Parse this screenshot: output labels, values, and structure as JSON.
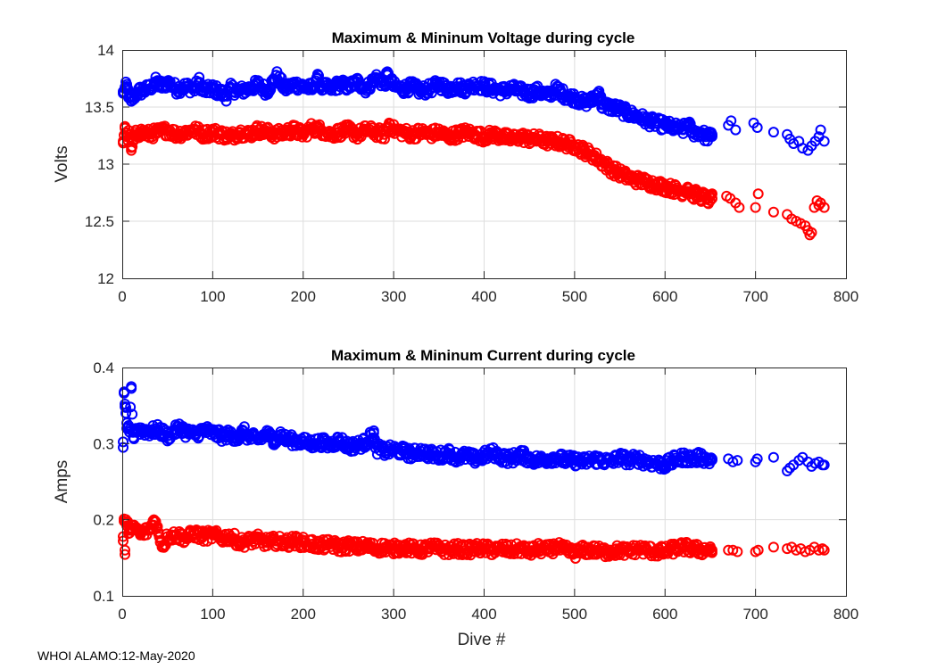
{
  "footer": "WHOI ALAMO:12-May-2020",
  "colors": {
    "max": "#0000ff",
    "min": "#ff0000",
    "grid": "#dedede",
    "axis": "#262626"
  },
  "chart_data": [
    {
      "type": "scatter",
      "title": "Maximum & Mininum Voltage during cycle",
      "xlabel": "",
      "ylabel": "Volts",
      "xlim": [
        0,
        800
      ],
      "ylim": [
        12,
        14
      ],
      "xticks": [
        0,
        100,
        200,
        300,
        400,
        500,
        600,
        700,
        800
      ],
      "yticks": [
        12,
        12.5,
        13,
        13.5,
        14
      ],
      "ytick_labels": [
        "12",
        "12.5",
        "13",
        "13.5",
        "14"
      ],
      "grid": true,
      "marker": "open-circle",
      "series": [
        {
          "name": "Maximum Voltage",
          "color": "#0000ff",
          "x": [
            1,
            3,
            5,
            8,
            10,
            15,
            20,
            30,
            36,
            45,
            50,
            60,
            70,
            80,
            85,
            90,
            100,
            110,
            115,
            120,
            130,
            140,
            150,
            160,
            168,
            170,
            180,
            190,
            200,
            210,
            215,
            220,
            230,
            240,
            250,
            260,
            270,
            280,
            290,
            293,
            300,
            310,
            320,
            330,
            340,
            350,
            360,
            370,
            380,
            390,
            400,
            410,
            420,
            430,
            440,
            450,
            460,
            470,
            480,
            490,
            500,
            510,
            520,
            527,
            530,
            540,
            550,
            560,
            570,
            580,
            590,
            600,
            610,
            620,
            625,
            630,
            640,
            645,
            650,
            652,
            670,
            673,
            678,
            698,
            702,
            720,
            735,
            738,
            742,
            748,
            752,
            758,
            762,
            766,
            770,
            772,
            776
          ],
          "y": [
            13.62,
            13.66,
            13.68,
            13.58,
            13.55,
            13.62,
            13.64,
            13.66,
            13.72,
            13.68,
            13.72,
            13.66,
            13.68,
            13.66,
            13.72,
            13.64,
            13.66,
            13.62,
            13.6,
            13.66,
            13.64,
            13.66,
            13.7,
            13.64,
            13.74,
            13.78,
            13.66,
            13.7,
            13.68,
            13.66,
            13.76,
            13.68,
            13.66,
            13.7,
            13.68,
            13.72,
            13.66,
            13.76,
            13.7,
            13.78,
            13.68,
            13.66,
            13.68,
            13.64,
            13.66,
            13.7,
            13.66,
            13.68,
            13.66,
            13.7,
            13.68,
            13.66,
            13.64,
            13.66,
            13.64,
            13.62,
            13.64,
            13.6,
            13.66,
            13.6,
            13.58,
            13.54,
            13.56,
            13.64,
            13.52,
            13.5,
            13.48,
            13.44,
            13.42,
            13.38,
            13.36,
            13.34,
            13.32,
            13.3,
            13.36,
            13.28,
            13.28,
            13.24,
            13.24,
            13.26,
            13.34,
            13.38,
            13.3,
            13.36,
            13.32,
            13.28,
            13.26,
            13.22,
            13.18,
            13.2,
            13.14,
            13.12,
            13.16,
            13.2,
            13.24,
            13.3,
            13.2
          ]
        },
        {
          "name": "Minimum Voltage",
          "color": "#ff0000",
          "x": [
            1,
            3,
            5,
            8,
            10,
            15,
            20,
            30,
            40,
            50,
            60,
            70,
            80,
            90,
            100,
            110,
            120,
            130,
            140,
            150,
            160,
            170,
            180,
            190,
            200,
            210,
            220,
            230,
            240,
            250,
            260,
            270,
            280,
            290,
            295,
            300,
            310,
            320,
            330,
            340,
            350,
            360,
            370,
            380,
            390,
            400,
            410,
            420,
            430,
            440,
            450,
            460,
            470,
            480,
            490,
            500,
            510,
            520,
            530,
            540,
            550,
            560,
            570,
            580,
            590,
            600,
            610,
            620,
            625,
            630,
            640,
            645,
            650,
            652,
            668,
            672,
            678,
            682,
            700,
            703,
            720,
            735,
            740,
            745,
            750,
            755,
            758,
            760,
            762,
            765,
            768,
            770,
            772,
            776
          ],
          "y": [
            13.2,
            13.33,
            13.24,
            13.26,
            13.12,
            13.26,
            13.28,
            13.26,
            13.28,
            13.3,
            13.26,
            13.28,
            13.3,
            13.26,
            13.28,
            13.26,
            13.24,
            13.28,
            13.26,
            13.3,
            13.28,
            13.26,
            13.28,
            13.3,
            13.26,
            13.32,
            13.3,
            13.26,
            13.28,
            13.3,
            13.26,
            13.3,
            13.28,
            13.26,
            13.36,
            13.3,
            13.28,
            13.26,
            13.28,
            13.26,
            13.28,
            13.24,
            13.26,
            13.28,
            13.26,
            13.24,
            13.26,
            13.24,
            13.22,
            13.24,
            13.22,
            13.22,
            13.2,
            13.2,
            13.18,
            13.16,
            13.12,
            13.08,
            13.02,
            12.96,
            12.92,
            12.88,
            12.86,
            12.84,
            12.82,
            12.8,
            12.78,
            12.76,
            12.8,
            12.74,
            12.72,
            12.7,
            12.68,
            12.74,
            12.72,
            12.7,
            12.66,
            12.62,
            12.62,
            12.74,
            12.58,
            12.56,
            12.52,
            12.5,
            12.48,
            12.46,
            12.42,
            12.38,
            12.4,
            12.62,
            12.68,
            12.64,
            12.66,
            12.62
          ]
        }
      ]
    },
    {
      "type": "scatter",
      "title": "Maximum & Mininum Current during cycle",
      "xlabel": "Dive #",
      "ylabel": "Amps",
      "xlim": [
        0,
        800
      ],
      "ylim": [
        0.1,
        0.4
      ],
      "xticks": [
        0,
        100,
        200,
        300,
        400,
        500,
        600,
        700,
        800
      ],
      "yticks": [
        0.1,
        0.2,
        0.3,
        0.4
      ],
      "ytick_labels": [
        "0.1",
        "0.2",
        "0.3",
        "0.4"
      ],
      "grid": true,
      "marker": "open-circle",
      "series": [
        {
          "name": "Maximum Current",
          "color": "#0000ff",
          "x": [
            1,
            2,
            3,
            4,
            5,
            8,
            10,
            12,
            15,
            20,
            30,
            40,
            50,
            60,
            65,
            70,
            80,
            90,
            100,
            110,
            120,
            130,
            133,
            140,
            150,
            160,
            170,
            175,
            180,
            190,
            200,
            210,
            220,
            230,
            240,
            250,
            260,
            270,
            278,
            280,
            290,
            300,
            310,
            320,
            330,
            340,
            350,
            360,
            370,
            380,
            390,
            400,
            410,
            420,
            430,
            440,
            450,
            460,
            470,
            480,
            490,
            500,
            510,
            520,
            530,
            540,
            550,
            560,
            570,
            580,
            590,
            600,
            610,
            620,
            630,
            640,
            650,
            652,
            670,
            675,
            680,
            700,
            702,
            720,
            735,
            738,
            742,
            748,
            752,
            758,
            762,
            766,
            770,
            774,
            776
          ],
          "y": [
            0.295,
            0.368,
            0.352,
            0.34,
            0.32,
            0.315,
            0.375,
            0.308,
            0.32,
            0.318,
            0.316,
            0.318,
            0.31,
            0.318,
            0.322,
            0.315,
            0.312,
            0.318,
            0.314,
            0.31,
            0.312,
            0.306,
            0.318,
            0.308,
            0.306,
            0.312,
            0.304,
            0.312,
            0.306,
            0.304,
            0.302,
            0.3,
            0.302,
            0.298,
            0.305,
            0.296,
            0.298,
            0.302,
            0.314,
            0.294,
            0.29,
            0.292,
            0.29,
            0.286,
            0.29,
            0.286,
            0.284,
            0.288,
            0.282,
            0.284,
            0.28,
            0.284,
            0.288,
            0.282,
            0.28,
            0.286,
            0.28,
            0.278,
            0.28,
            0.282,
            0.278,
            0.278,
            0.276,
            0.28,
            0.278,
            0.276,
            0.282,
            0.278,
            0.28,
            0.276,
            0.274,
            0.272,
            0.278,
            0.282,
            0.28,
            0.282,
            0.278,
            0.28,
            0.28,
            0.276,
            0.278,
            0.276,
            0.28,
            0.282,
            0.264,
            0.268,
            0.272,
            0.278,
            0.282,
            0.276,
            0.27,
            0.274,
            0.276,
            0.272,
            0.272
          ]
        },
        {
          "name": "Minimum Current",
          "color": "#ff0000",
          "x": [
            1,
            2,
            3,
            4,
            5,
            8,
            10,
            15,
            20,
            30,
            35,
            40,
            45,
            50,
            60,
            70,
            80,
            90,
            100,
            110,
            120,
            130,
            140,
            150,
            160,
            170,
            180,
            190,
            200,
            210,
            220,
            230,
            240,
            250,
            260,
            270,
            280,
            290,
            300,
            310,
            320,
            330,
            340,
            350,
            360,
            370,
            380,
            390,
            400,
            410,
            420,
            430,
            440,
            450,
            460,
            470,
            480,
            490,
            500,
            510,
            520,
            530,
            540,
            550,
            560,
            570,
            580,
            590,
            600,
            610,
            620,
            630,
            640,
            650,
            652,
            670,
            675,
            680,
            700,
            703,
            720,
            735,
            740,
            745,
            750,
            755,
            760,
            765,
            770,
            774,
            776
          ],
          "y": [
            0.172,
            0.198,
            0.16,
            0.196,
            0.192,
            0.188,
            0.186,
            0.188,
            0.182,
            0.186,
            0.2,
            0.184,
            0.165,
            0.178,
            0.18,
            0.176,
            0.182,
            0.178,
            0.18,
            0.176,
            0.178,
            0.17,
            0.172,
            0.174,
            0.17,
            0.172,
            0.17,
            0.172,
            0.17,
            0.168,
            0.166,
            0.168,
            0.164,
            0.166,
            0.164,
            0.166,
            0.162,
            0.164,
            0.162,
            0.164,
            0.162,
            0.16,
            0.164,
            0.162,
            0.16,
            0.162,
            0.16,
            0.162,
            0.162,
            0.16,
            0.162,
            0.16,
            0.162,
            0.158,
            0.162,
            0.16,
            0.164,
            0.16,
            0.156,
            0.16,
            0.16,
            0.158,
            0.158,
            0.16,
            0.158,
            0.162,
            0.16,
            0.158,
            0.158,
            0.162,
            0.164,
            0.162,
            0.16,
            0.162,
            0.16,
            0.16,
            0.16,
            0.158,
            0.158,
            0.16,
            0.164,
            0.162,
            0.164,
            0.16,
            0.162,
            0.158,
            0.16,
            0.164,
            0.16,
            0.162,
            0.16
          ]
        }
      ]
    }
  ]
}
